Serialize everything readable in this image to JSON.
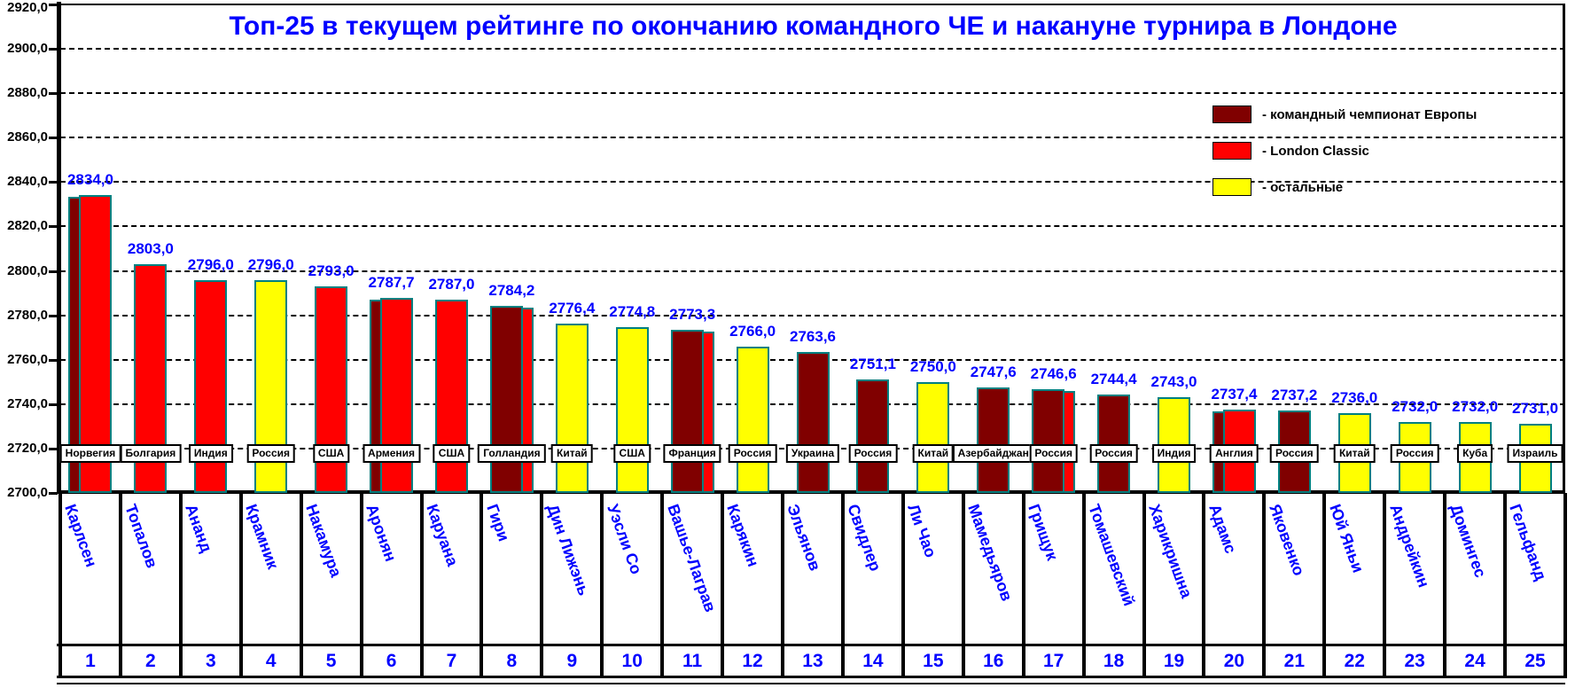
{
  "colors": {
    "eu": "#800000",
    "london": "#FF0000",
    "other": "#FFFF00",
    "bar_border": "#008080",
    "text_blue": "#0000FF",
    "axis_black": "#000000",
    "background": "#FFFFFF"
  },
  "legend": {
    "items": [
      {
        "key": "eu",
        "label": "- командный чемпионат Европы",
        "color": "#800000"
      },
      {
        "key": "london",
        "label": "- London Classic",
        "color": "#FF0000"
      },
      {
        "key": "other",
        "label": "- остальные",
        "color": "#FFFF00"
      }
    ]
  },
  "chart_data": {
    "type": "bar",
    "title": "Топ-25 в текущем рейтинге по окончанию командного ЧЕ и накануне турнира в Лондоне",
    "xlabel": "",
    "ylabel": "",
    "ylim": [
      2700,
      2920
    ],
    "ytick_step": 20,
    "ytick_labels": [
      "2920,0",
      "2900,0",
      "2880,0",
      "2860,0",
      "2840,0",
      "2820,0",
      "2800,0",
      "2780,0",
      "2760,0",
      "2740,0",
      "2720,0",
      "2700,0"
    ],
    "grid": "dashed-horizontal",
    "legend_position": "top-right",
    "players": [
      {
        "rank": 1,
        "name": "Карлсен",
        "country": "Норвегия",
        "value": 2834.0,
        "value_label": "2834,0",
        "events": [
          "eu",
          "london"
        ],
        "front": "london"
      },
      {
        "rank": 2,
        "name": "Топалов",
        "country": "Болгария",
        "value": 2803.0,
        "value_label": "2803,0",
        "events": [
          "london"
        ],
        "front": "london"
      },
      {
        "rank": 3,
        "name": "Ананд",
        "country": "Индия",
        "value": 2796.0,
        "value_label": "2796,0",
        "events": [
          "london"
        ],
        "front": "london"
      },
      {
        "rank": 4,
        "name": "Крамник",
        "country": "Россия",
        "value": 2796.0,
        "value_label": "2796,0",
        "events": [
          "other"
        ],
        "front": "other"
      },
      {
        "rank": 5,
        "name": "Накамура",
        "country": "США",
        "value": 2793.0,
        "value_label": "2793,0",
        "events": [
          "london"
        ],
        "front": "london"
      },
      {
        "rank": 6,
        "name": "Аронян",
        "country": "Армения",
        "value": 2787.7,
        "value_label": "2787,7",
        "events": [
          "eu",
          "london"
        ],
        "front": "london"
      },
      {
        "rank": 7,
        "name": "Каруана",
        "country": "США",
        "value": 2787.0,
        "value_label": "2787,0",
        "events": [
          "london"
        ],
        "front": "london"
      },
      {
        "rank": 8,
        "name": "Гири",
        "country": "Голландия",
        "value": 2784.2,
        "value_label": "2784,2",
        "events": [
          "eu",
          "london"
        ],
        "front": "eu"
      },
      {
        "rank": 9,
        "name": "Дин Лижэнь",
        "country": "Китай",
        "value": 2776.4,
        "value_label": "2776,4",
        "events": [
          "other"
        ],
        "front": "other"
      },
      {
        "rank": 10,
        "name": "Уэсли Со",
        "country": "США",
        "value": 2774.8,
        "value_label": "2774,8",
        "events": [
          "other"
        ],
        "front": "other"
      },
      {
        "rank": 11,
        "name": "Вашье-Лаграв",
        "country": "Франция",
        "value": 2773.3,
        "value_label": "2773,3",
        "events": [
          "eu",
          "london"
        ],
        "front": "eu"
      },
      {
        "rank": 12,
        "name": "Карякин",
        "country": "Россия",
        "value": 2766.0,
        "value_label": "2766,0",
        "events": [
          "other"
        ],
        "front": "other"
      },
      {
        "rank": 13,
        "name": "Эльянов",
        "country": "Украина",
        "value": 2763.6,
        "value_label": "2763,6",
        "events": [
          "eu"
        ],
        "front": "eu"
      },
      {
        "rank": 14,
        "name": "Свидлер",
        "country": "Россия",
        "value": 2751.1,
        "value_label": "2751,1",
        "events": [
          "eu"
        ],
        "front": "eu"
      },
      {
        "rank": 15,
        "name": "Ли Чао",
        "country": "Китай",
        "value": 2750.0,
        "value_label": "2750,0",
        "events": [
          "other"
        ],
        "front": "other"
      },
      {
        "rank": 16,
        "name": "Мамедьяров",
        "country": "Азербайджан",
        "value": 2747.6,
        "value_label": "2747,6",
        "events": [
          "eu"
        ],
        "front": "eu"
      },
      {
        "rank": 17,
        "name": "Грищук",
        "country": "Россия",
        "value": 2746.6,
        "value_label": "2746,6",
        "events": [
          "eu",
          "london"
        ],
        "front": "eu"
      },
      {
        "rank": 18,
        "name": "Томашевский",
        "country": "Россия",
        "value": 2744.4,
        "value_label": "2744,4",
        "events": [
          "eu"
        ],
        "front": "eu"
      },
      {
        "rank": 19,
        "name": "Харикришна",
        "country": "Индия",
        "value": 2743.0,
        "value_label": "2743,0",
        "events": [
          "other"
        ],
        "front": "other"
      },
      {
        "rank": 20,
        "name": "Адамс",
        "country": "Англия",
        "value": 2737.4,
        "value_label": "2737,4",
        "events": [
          "eu",
          "london"
        ],
        "front": "london"
      },
      {
        "rank": 21,
        "name": "Яковенко",
        "country": "Россия",
        "value": 2737.2,
        "value_label": "2737,2",
        "events": [
          "eu"
        ],
        "front": "eu"
      },
      {
        "rank": 22,
        "name": "Юй Яньи",
        "country": "Китай",
        "value": 2736.0,
        "value_label": "2736,0",
        "events": [
          "other"
        ],
        "front": "other"
      },
      {
        "rank": 23,
        "name": "Андрейкин",
        "country": "Россия",
        "value": 2732.0,
        "value_label": "2732,0",
        "events": [
          "other"
        ],
        "front": "other"
      },
      {
        "rank": 24,
        "name": "Домингес",
        "country": "Куба",
        "value": 2732.0,
        "value_label": "2732,0",
        "events": [
          "other"
        ],
        "front": "other"
      },
      {
        "rank": 25,
        "name": "Гельфанд",
        "country": "Израиль",
        "value": 2731.0,
        "value_label": "2731,0",
        "events": [
          "other"
        ],
        "front": "other"
      }
    ]
  }
}
